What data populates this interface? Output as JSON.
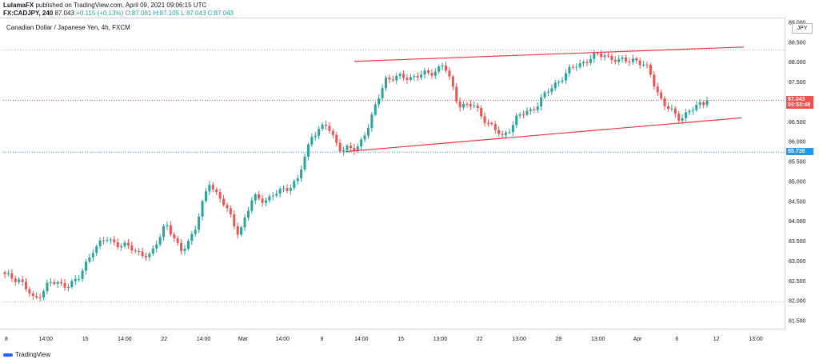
{
  "header": {
    "author": "LulamaFX",
    "published": "published on TradingView.com, April 09, 2021 09:06:15 UTC",
    "symbol": "FX:CADJPY, 240",
    "last": "87.043",
    "change": "+0.115 (+0.13%)",
    "ohlc": "O:87.081 H:87.105 L:87.043 C:87.043"
  },
  "chart_title": "Canadian Dollar / Japanese Yen, 4h, FXCM",
  "currency_label": "JPY",
  "price_tag": {
    "price": "87.043",
    "countdown": "03:53:48"
  },
  "level_tag": "85.738",
  "footer": {
    "brand": "TradingView"
  },
  "colors": {
    "up": "#26a69a",
    "down": "#ef5350",
    "trendline": "#f23645",
    "level": "#2196f3"
  },
  "chart_data": {
    "type": "candlestick",
    "title": "Canadian Dollar / Japanese Yen, 4h, FXCM",
    "y_ticks": [
      "89.000",
      "88.500",
      "88.000",
      "87.500",
      "87.000",
      "86.500",
      "86.000",
      "85.500",
      "85.000",
      "84.500",
      "84.000",
      "83.500",
      "83.000",
      "82.500",
      "82.000",
      "81.500"
    ],
    "ylim": [
      81.3,
      89.1
    ],
    "x_ticks": [
      "8",
      "14:00",
      "15",
      "14:00",
      "22",
      "14:00",
      "Mar",
      "14:00",
      "8",
      "14:00",
      "15",
      "13:00",
      "22",
      "13:00",
      "29",
      "13:00",
      "Apr",
      "6",
      "12",
      "13:00"
    ],
    "close_anchors": [
      82.62,
      82.55,
      82.0,
      82.45,
      82.4,
      82.5,
      83.3,
      83.55,
      83.4,
      83.25,
      83.1,
      84.0,
      83.2,
      83.8,
      85.0,
      84.4,
      83.7,
      84.6,
      84.55,
      84.8,
      85.0,
      86.2,
      86.4,
      85.8,
      85.8,
      86.5,
      87.6,
      87.6,
      87.65,
      87.7,
      87.95,
      86.95,
      86.9,
      86.5,
      86.1,
      86.6,
      86.8,
      87.2,
      87.6,
      87.9,
      88.1,
      88.2,
      88.0,
      88.1,
      87.8,
      86.95,
      86.6,
      86.8,
      87.04
    ],
    "trendlines": [
      {
        "from": [
          0,
          88.02
        ],
        "to": [
          1,
          88.38
        ],
        "color": "#f23645"
      },
      {
        "from": [
          0,
          85.75
        ],
        "to": [
          1,
          86.6
        ],
        "color": "#f23645"
      }
    ],
    "levels": [
      {
        "value": 87.043,
        "style": "dotted",
        "color": "#ef5350"
      },
      {
        "value": 85.738,
        "style": "dotted",
        "color": "#2196f3"
      },
      {
        "value": 88.3,
        "style": "dotted",
        "color": "#b2b5be"
      },
      {
        "value": 81.97,
        "style": "dotted",
        "color": "#b2b5be"
      }
    ],
    "grid": false
  }
}
